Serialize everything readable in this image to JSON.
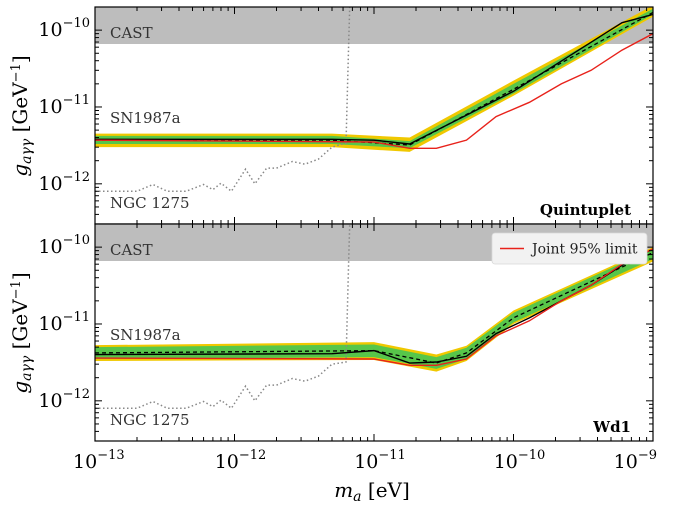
{
  "chart_data": [
    {
      "type": "line",
      "title": "Quintuplet",
      "xlabel": "m_a [eV]",
      "ylabel": "g_aγγ [GeV⁻¹]",
      "xscale": "log",
      "yscale": "log",
      "xlim": [
        1e-13,
        1e-09
      ],
      "ylim": [
        3e-13,
        2e-10
      ],
      "x_ticks": [
        "10^-13",
        "10^-12",
        "10^-11",
        "10^-10",
        "10^-9"
      ],
      "y_ticks": [
        "10^-12",
        "10^-11",
        "10^-10"
      ],
      "annotations": [
        "CAST",
        "SN1987a",
        "NGC 1275"
      ],
      "cast_band": [
        6.6e-11,
        2e-10
      ],
      "series": [
        {
          "role": "expected-2sigma",
          "color": "#f0c800",
          "x": [
            1e-13,
            5e-12,
            1.8e-11,
            1e-10,
            1e-09
          ],
          "lower": [
            3e-12,
            3e-12,
            2.6e-12,
            1.4e-11,
            1.5e-10
          ],
          "upper": [
            4.5e-12,
            4.5e-12,
            4e-12,
            2.2e-11,
            2.1e-10
          ]
        },
        {
          "role": "expected-1sigma",
          "color": "#57c64a",
          "x": [
            1e-13,
            5e-12,
            1.8e-11,
            1e-10,
            1e-09
          ],
          "lower": [
            3.3e-12,
            3.3e-12,
            2.9e-12,
            1.5e-11,
            1.6e-10
          ],
          "upper": [
            4.2e-12,
            4.2e-12,
            3.6e-12,
            2e-11,
            1.9e-10
          ]
        },
        {
          "role": "expected-median",
          "color": "#000000",
          "style": "dashed",
          "x": [
            1e-13,
            5e-12,
            1.8e-11,
            1e-10,
            1e-09
          ],
          "values": [
            3.7e-12,
            3.7e-12,
            3.2e-12,
            1.7e-11,
            1.7e-10
          ]
        },
        {
          "role": "median-solid",
          "color": "#000000",
          "x": [
            1e-13,
            5e-12,
            1e-11,
            1.8e-11,
            1e-10,
            6e-10,
            1e-09
          ],
          "values": [
            3.8e-12,
            3.8e-12,
            3.7e-12,
            3.3e-12,
            1.6e-11,
            1.25e-10,
            1.6e-10
          ]
        },
        {
          "role": "joint-limit",
          "color": "#e8221b",
          "x": [
            1e-13,
            1e-11,
            1.8e-11,
            2.8e-11,
            4.6e-11,
            7.5e-11,
            1.3e-10,
            2.2e-10,
            3.6e-10,
            6e-10,
            1e-09
          ],
          "values": [
            3.7e-12,
            3.5e-12,
            2.9e-12,
            2.9e-12,
            3.7e-12,
            7.5e-12,
            1.15e-11,
            2e-11,
            3e-11,
            5.5e-11,
            9e-11
          ]
        },
        {
          "role": "ngc1275",
          "color": "#888888",
          "style": "dotted",
          "x": [
            1e-13,
            2e-13,
            2.6e-13,
            3.3e-13,
            4.5e-13,
            6e-13,
            7e-13,
            8e-13,
            9.5e-13,
            1.2e-12,
            1.4e-12,
            1.7e-12,
            2e-12,
            2.6e-12,
            3.2e-12,
            4e-12,
            5e-12,
            6.3e-12,
            6.6e-12,
            6.8e-12
          ],
          "values": [
            8e-13,
            8e-13,
            9.8e-13,
            8e-13,
            8e-13,
            9.8e-13,
            8.4e-13,
            1.02e-12,
            8e-13,
            1.55e-12,
            1e-12,
            1.6e-12,
            1.6e-12,
            1.95e-12,
            1.8e-12,
            2.1e-12,
            3e-12,
            3.4e-12,
            8e-11,
            5e-10
          ]
        }
      ]
    },
    {
      "type": "line",
      "title": "Wd1",
      "xlabel": "m_a [eV]",
      "ylabel": "g_aγγ [GeV⁻¹]",
      "xscale": "log",
      "yscale": "log",
      "xlim": [
        1e-13,
        1e-09
      ],
      "ylim": [
        3e-13,
        2e-10
      ],
      "x_ticks": [
        "10^-13",
        "10^-12",
        "10^-11",
        "10^-10",
        "10^-9"
      ],
      "y_ticks": [
        "10^-12",
        "10^-11",
        "10^-10"
      ],
      "annotations": [
        "CAST",
        "SN1987a",
        "NGC 1275"
      ],
      "legend": {
        "entries": [
          "Joint 95% limit"
        ],
        "position": "top-right"
      },
      "cast_band": [
        6.6e-11,
        2e-10
      ],
      "series": [
        {
          "role": "expected-2sigma",
          "color": "#f0c800",
          "x": [
            1e-13,
            1e-11,
            2.8e-11,
            4.6e-11,
            1e-10,
            1e-09
          ],
          "lower": [
            3.3e-12,
            3.4e-12,
            2.4e-12,
            3.3e-12,
            1e-11,
            6.5e-11
          ],
          "upper": [
            5.3e-12,
            5.8e-12,
            4e-12,
            5.2e-12,
            1.5e-11,
            1e-10
          ]
        },
        {
          "role": "expected-1sigma",
          "color": "#57c64a",
          "x": [
            1e-13,
            1e-11,
            2.8e-11,
            4.6e-11,
            1e-10,
            1e-09
          ],
          "lower": [
            3.5e-12,
            3.7e-12,
            2.6e-12,
            3.5e-12,
            1.05e-11,
            7e-11
          ],
          "upper": [
            5e-12,
            5.4e-12,
            3.7e-12,
            4.9e-12,
            1.4e-11,
            9.5e-11
          ]
        },
        {
          "role": "expected-median",
          "color": "#000000",
          "style": "dashed",
          "x": [
            1e-13,
            1e-11,
            2.8e-11,
            4.6e-11,
            1e-10,
            1e-09
          ],
          "values": [
            4.2e-12,
            4.5e-12,
            3.1e-12,
            4.2e-12,
            1.2e-11,
            8.5e-11
          ]
        },
        {
          "role": "median-solid",
          "color": "#000000",
          "x": [
            1e-13,
            5e-12,
            1e-11,
            1.8e-11,
            2.8e-11,
            4.6e-11,
            7.5e-11,
            1.3e-10,
            2.2e-10,
            3.6e-10,
            6e-10,
            1e-09
          ],
          "values": [
            4e-12,
            4.1e-12,
            4.5e-12,
            3.1e-12,
            3.2e-12,
            3.8e-12,
            7.5e-12,
            1.2e-11,
            2e-11,
            3.2e-11,
            5.8e-11,
            9.5e-11
          ]
        },
        {
          "role": "joint-limit",
          "name": "Joint 95% limit",
          "color": "#e8221b",
          "x": [
            1e-13,
            1e-11,
            1.8e-11,
            2.8e-11,
            4.6e-11,
            7.5e-11,
            1.3e-10,
            2.2e-10,
            3.6e-10,
            6e-10,
            1e-09
          ],
          "values": [
            3.6e-12,
            3.5e-12,
            2.9e-12,
            2.9e-12,
            3.5e-12,
            7e-12,
            1.1e-11,
            2e-11,
            3.2e-11,
            6e-11,
            9.5e-11
          ]
        },
        {
          "role": "ngc1275",
          "color": "#888888",
          "style": "dotted",
          "x": [
            1e-13,
            2e-13,
            2.6e-13,
            3.3e-13,
            4.5e-13,
            6e-13,
            7e-13,
            8e-13,
            9.5e-13,
            1.2e-12,
            1.4e-12,
            1.7e-12,
            2e-12,
            2.6e-12,
            3.2e-12,
            4e-12,
            5e-12,
            6.3e-12,
            6.6e-12,
            6.8e-12
          ],
          "values": [
            8e-13,
            8e-13,
            9.8e-13,
            8e-13,
            8e-13,
            9.8e-13,
            8.4e-13,
            1.02e-12,
            8e-13,
            1.55e-12,
            1e-12,
            1.6e-12,
            1.6e-12,
            1.95e-12,
            1.8e-12,
            2.1e-12,
            3e-12,
            3.2e-12,
            8e-11,
            5e-10
          ]
        }
      ]
    }
  ]
}
